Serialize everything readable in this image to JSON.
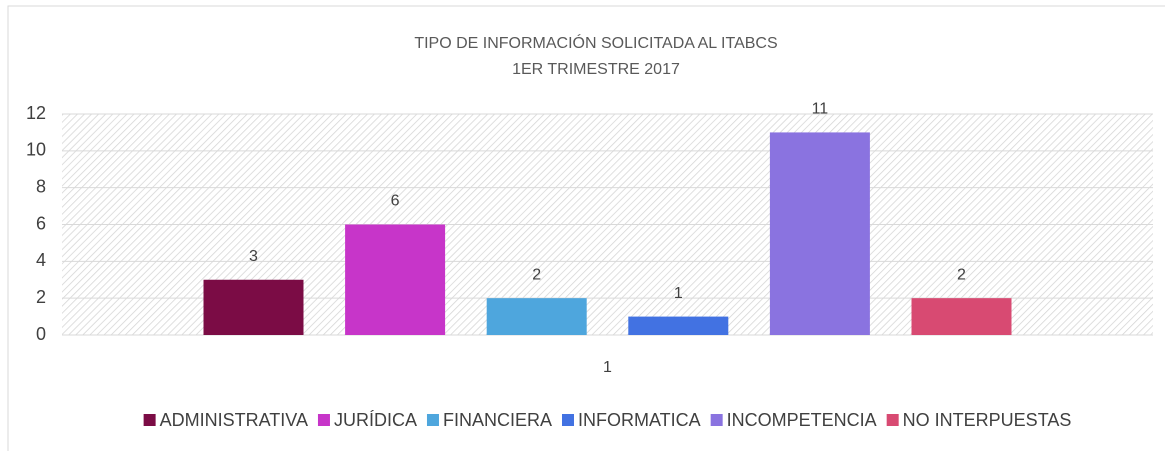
{
  "chart_data": {
    "type": "bar",
    "title": "TIPO DE INFORMACIÓN SOLICITADA AL ITABCS",
    "subtitle": "1ER TRIMESTRE 2017",
    "categories": [
      "1"
    ],
    "series": [
      {
        "name": "ADMINISTRATIVA",
        "color": "#7b0c45",
        "values": [
          3
        ]
      },
      {
        "name": "JURÍDICA",
        "color": "#c735c9",
        "values": [
          6
        ]
      },
      {
        "name": "FINANCIERA",
        "color": "#4ea6dd",
        "values": [
          2
        ]
      },
      {
        "name": "INFORMATICA",
        "color": "#4272e2",
        "values": [
          1
        ]
      },
      {
        "name": "INCOMPETENCIA",
        "color": "#8a73e0",
        "values": [
          11
        ]
      },
      {
        "name": "NO INTERPUESTAS",
        "color": "#d84a72",
        "values": [
          2
        ]
      }
    ],
    "ylim": [
      0,
      12
    ],
    "yticks": [
      0,
      2,
      4,
      6,
      8,
      10,
      12
    ],
    "grid": true,
    "legend": "bottom"
  }
}
